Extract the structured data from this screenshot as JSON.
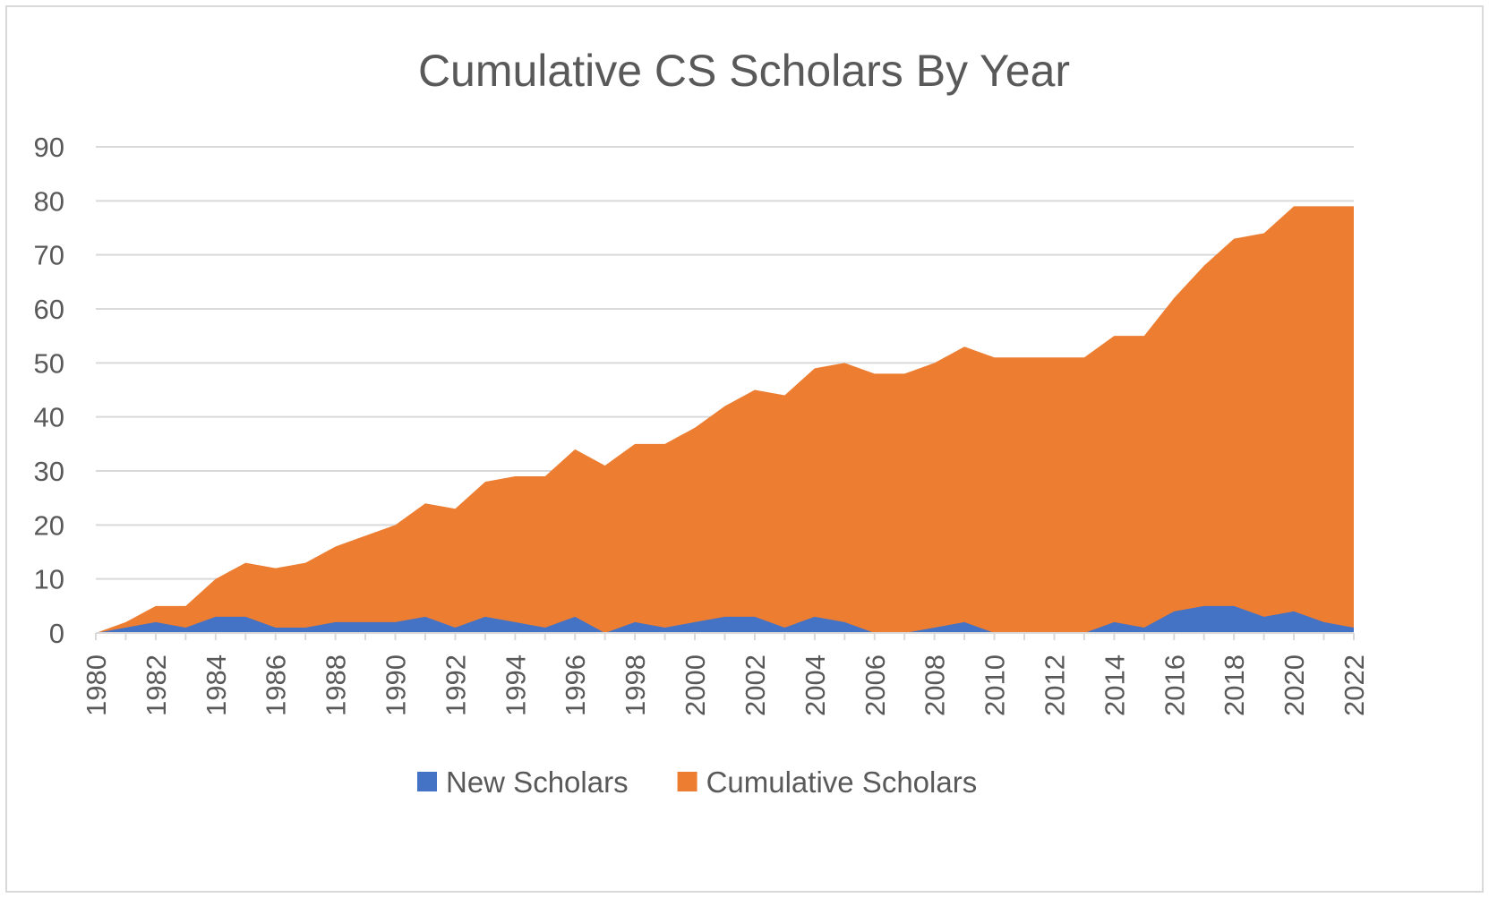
{
  "chart_data": {
    "type": "area",
    "title": "Cumulative CS Scholars By Year",
    "xlabel": "",
    "ylabel": "",
    "ylim": [
      0,
      90
    ],
    "y_ticks": [
      0,
      10,
      20,
      30,
      40,
      50,
      60,
      70,
      80,
      90
    ],
    "x": [
      1980,
      1981,
      1982,
      1983,
      1984,
      1985,
      1986,
      1987,
      1988,
      1989,
      1990,
      1991,
      1992,
      1993,
      1994,
      1995,
      1996,
      1997,
      1998,
      1999,
      2000,
      2001,
      2002,
      2003,
      2004,
      2005,
      2006,
      2007,
      2008,
      2009,
      2010,
      2011,
      2012,
      2013,
      2014,
      2015,
      2016,
      2017,
      2018,
      2019,
      2020,
      2021,
      2022
    ],
    "x_tick_labels": [
      "1980",
      "1982",
      "1984",
      "1986",
      "1988",
      "1990",
      "1992",
      "1994",
      "1996",
      "1998",
      "2000",
      "2002",
      "2004",
      "2006",
      "2008",
      "2010",
      "2012",
      "2014",
      "2016",
      "2018",
      "2020",
      "2022"
    ],
    "series": [
      {
        "name": "New Scholars",
        "color": "#4472c4",
        "values": [
          0,
          1,
          2,
          1,
          3,
          3,
          1,
          1,
          2,
          2,
          2,
          3,
          1,
          3,
          2,
          1,
          3,
          0,
          2,
          1,
          2,
          3,
          3,
          1,
          3,
          2,
          0,
          0,
          1,
          2,
          0,
          0,
          0,
          0,
          2,
          1,
          4,
          5,
          5,
          3,
          4,
          2,
          1
        ]
      },
      {
        "name": "Cumulative Scholars",
        "color": "#ed7d31",
        "values": [
          0,
          2,
          5,
          5,
          10,
          13,
          12,
          13,
          16,
          18,
          20,
          24,
          23,
          28,
          29,
          29,
          34,
          31,
          35,
          35,
          38,
          42,
          45,
          44,
          49,
          50,
          48,
          48,
          50,
          53,
          51,
          51,
          51,
          51,
          55,
          55,
          62,
          68,
          73,
          74,
          79,
          79,
          79
        ]
      }
    ],
    "grid": true,
    "legend_position": "bottom",
    "colors": {
      "grid": "#d9d9d9",
      "axis_text": "#595959",
      "border": "#d9d9d9"
    }
  }
}
